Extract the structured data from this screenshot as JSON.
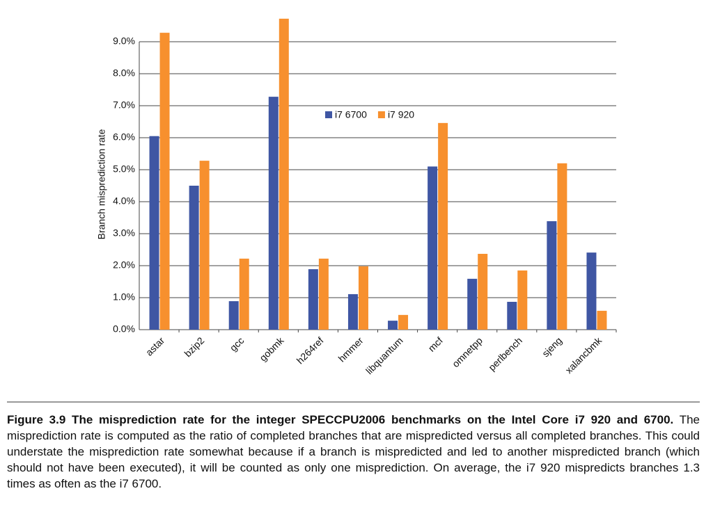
{
  "chart_data": {
    "type": "bar",
    "y_label": "Branch misprediction rate",
    "categories": [
      "astar",
      "bzip2",
      "gcc",
      "gobmk",
      "h264ref",
      "hmmer",
      "libquantum",
      "mcf",
      "omnetpp",
      "perlbench",
      "sjeng",
      "xalancbmk"
    ],
    "series": [
      {
        "name": "i7 6700",
        "color": "#3f56a3",
        "values": [
          6.05,
          4.5,
          0.89,
          7.28,
          1.89,
          1.11,
          0.28,
          5.1,
          1.59,
          0.87,
          3.39,
          2.41
        ]
      },
      {
        "name": "i7 920",
        "color": "#f7902e",
        "values": [
          9.28,
          5.28,
          2.22,
          9.72,
          2.22,
          1.98,
          0.46,
          6.46,
          2.37,
          1.85,
          5.2,
          0.59
        ]
      }
    ],
    "ylim": [
      0,
      10
    ],
    "yticks": [
      {
        "value": 0,
        "label": "0.0%"
      },
      {
        "value": 1,
        "label": "1.0%"
      },
      {
        "value": 2,
        "label": "2.0%"
      },
      {
        "value": 3,
        "label": "3.0%"
      },
      {
        "value": 4,
        "label": "4.0%"
      },
      {
        "value": 5,
        "label": "5.0%"
      },
      {
        "value": 6,
        "label": "6.0%"
      },
      {
        "value": 7,
        "label": "7.0%"
      },
      {
        "value": 8,
        "label": "8.0%"
      },
      {
        "value": 9,
        "label": "9.0%"
      }
    ],
    "grid": true,
    "caption": {
      "title": "Figure 3.9  The misprediction rate for the integer SPECCPU2006 benchmarks on the Intel Core i7 920 and 6700.",
      "text": "The misprediction rate is computed as the ratio of completed branches that are mispredicted versus all completed branches. This could understate the misprediction rate somewhat because if a branch is mispredicted and led to another mispredicted branch (which should not have been executed), it will be counted as only one misprediction. On average, the i7 920 mispredicts branches 1.3 times as often as the i7 6700."
    }
  }
}
